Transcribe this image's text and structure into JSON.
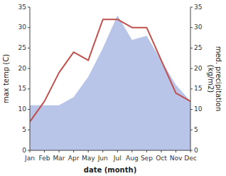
{
  "chart_data": {
    "type": "line",
    "xlabel": "date (month)",
    "ylabel": "max temp (C)",
    "y2label": "med. precipitation\n(kg/m2)",
    "categories": [
      "Jan",
      "Feb",
      "Mar",
      "Apr",
      "May",
      "Jun",
      "Jul",
      "Aug",
      "Sep",
      "Oct",
      "Nov",
      "Dec"
    ],
    "series": [
      {
        "type": "area",
        "axis": "y2",
        "color": "#b8c4e8",
        "values": [
          11,
          11,
          11,
          13,
          18,
          25,
          33,
          27,
          28,
          22,
          16,
          12
        ]
      },
      {
        "type": "line",
        "color": "#c0504d",
        "values": [
          7,
          12,
          19,
          24,
          22,
          32,
          32,
          30,
          30,
          22,
          14,
          12
        ]
      }
    ],
    "ylim": [
      0,
      35
    ],
    "yticks": [
      0,
      5,
      10,
      15,
      20,
      25,
      30,
      35
    ],
    "y2lim": [
      0,
      35
    ],
    "y2ticks": [
      0,
      5,
      10,
      15,
      20,
      25,
      30,
      35
    ],
    "grid": false
  }
}
